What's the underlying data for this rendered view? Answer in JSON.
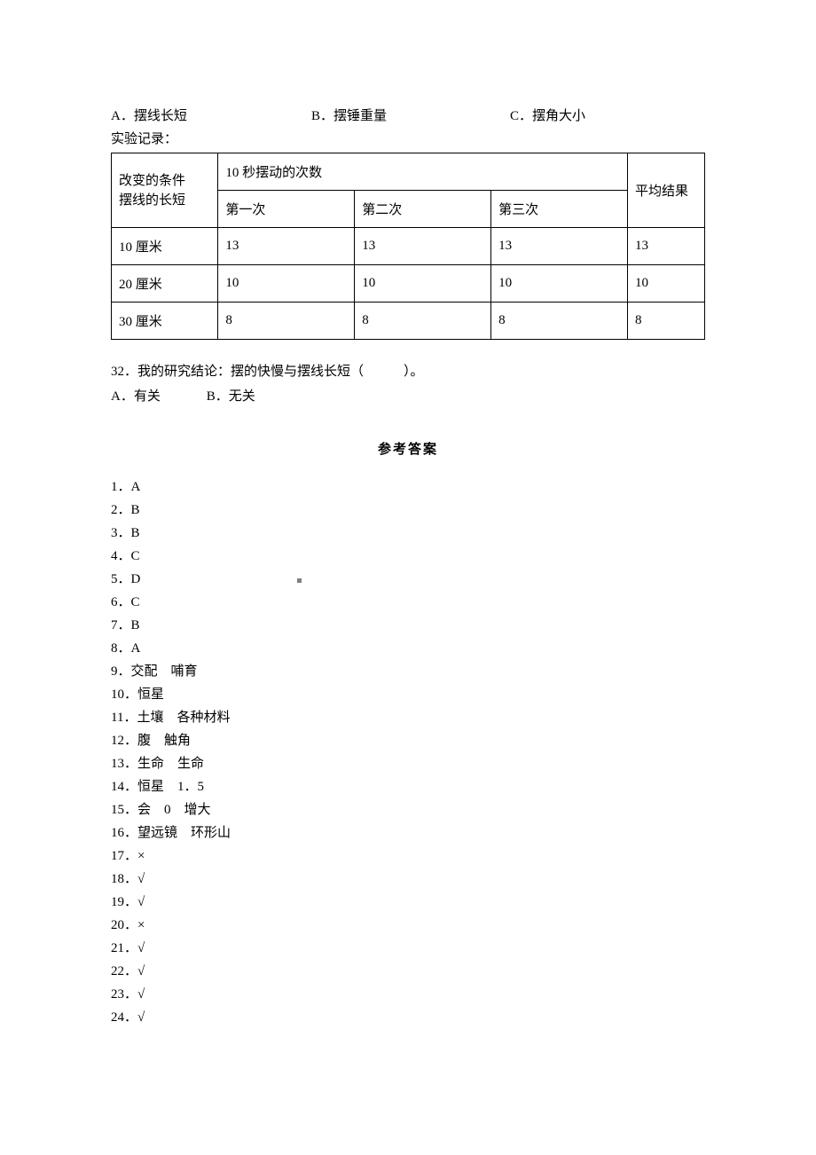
{
  "options": {
    "a": "A．摆线长短",
    "b": "B．摆锤重量",
    "c": "C．摆角大小"
  },
  "record_label": "实验记录：",
  "table": {
    "header_left_line1": "改变的条件",
    "header_left_line2": "摆线的长短",
    "header_top": "10 秒摆动的次数",
    "header_avg": "平均结果",
    "sub_headers": [
      "第一次",
      "第二次",
      "第三次"
    ],
    "rows": [
      {
        "label": "10 厘米",
        "v1": "13",
        "v2": "13",
        "v3": "13",
        "avg": "13"
      },
      {
        "label": "20 厘米",
        "v1": "10",
        "v2": "10",
        "v3": "10",
        "avg": "10"
      },
      {
        "label": "30 厘米",
        "v1": "8",
        "v2": "8",
        "v3": "8",
        "avg": "8"
      }
    ]
  },
  "question32": {
    "text": "32．我的研究结论：摆的快慢与摆线长短（　　　）。",
    "opt_a": "A．有关",
    "opt_b": "B．无关"
  },
  "answers_title": "参考答案",
  "answers": [
    "1．A",
    "2．B",
    "3．B",
    "4．C",
    "5．D",
    "6．C",
    "7．B",
    "8．A",
    "9．交配　哺育",
    "10．恒星",
    "11．土壤　各种材料",
    "12．腹　触角",
    "13．生命　生命",
    "14．恒星　1．5",
    "15．会　0　增大",
    "16．望远镜　环形山",
    "17．×",
    "18．√",
    "19．√",
    "20．×",
    "21．√",
    "22．√",
    "23．√",
    "24．√"
  ]
}
